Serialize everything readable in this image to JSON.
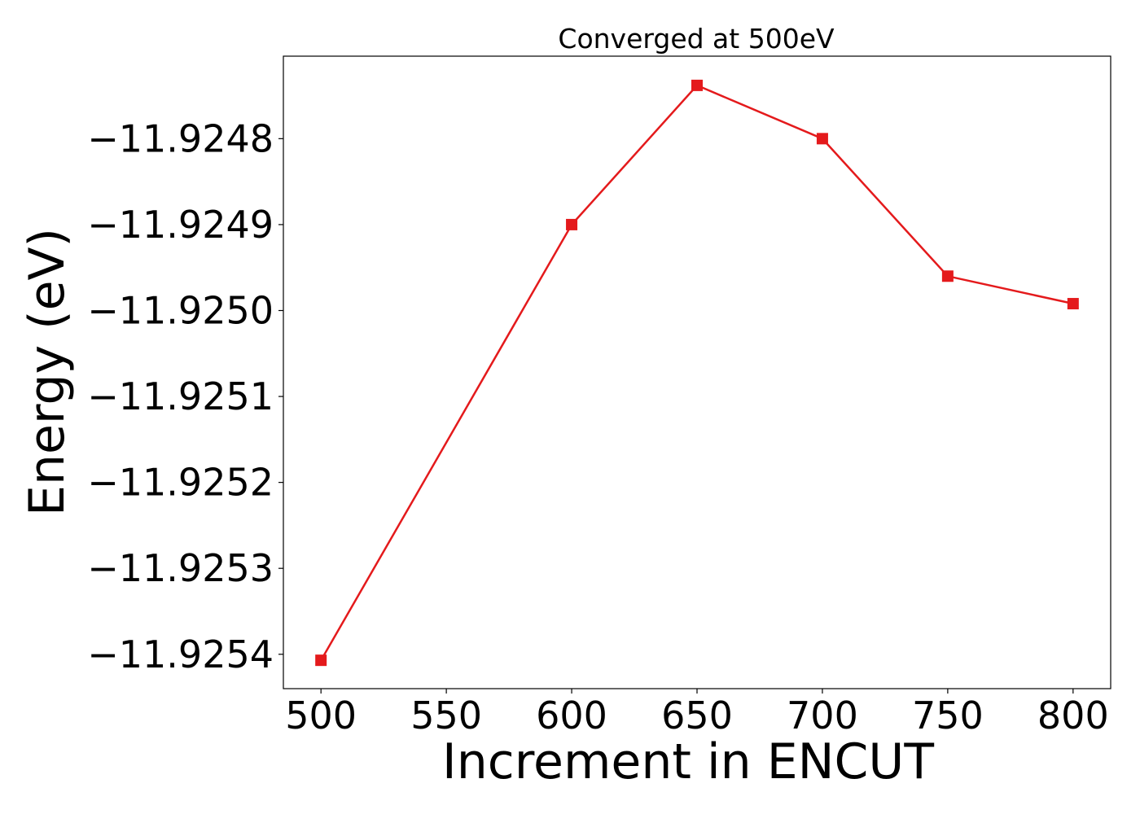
{
  "chart_data": {
    "type": "line",
    "title": "Converged at 500eV",
    "xlabel": "Increment in ENCUT",
    "ylabel": "Energy (eV)",
    "x": [
      500,
      600,
      650,
      700,
      750,
      800
    ],
    "series": [
      {
        "values": [
          -11.925407,
          -11.9249,
          -11.924738,
          -11.9248,
          -11.92496,
          -11.924992
        ],
        "color": "#e41a1c",
        "marker": "square"
      }
    ],
    "xlim": [
      485,
      815
    ],
    "ylim": [
      -11.92544,
      -11.924704
    ],
    "xticks": [
      500,
      550,
      600,
      650,
      700,
      750,
      800
    ],
    "xtick_labels": [
      "500",
      "550",
      "600",
      "650",
      "700",
      "750",
      "800"
    ],
    "yticks": [
      -11.9254,
      -11.9253,
      -11.9252,
      -11.9251,
      -11.925,
      -11.9249,
      -11.9248
    ],
    "ytick_labels": [
      "−11.9254",
      "−11.9253",
      "−11.9252",
      "−11.9251",
      "−11.9250",
      "−11.9249",
      "−11.9248"
    ],
    "grid": false,
    "legend": "none"
  }
}
